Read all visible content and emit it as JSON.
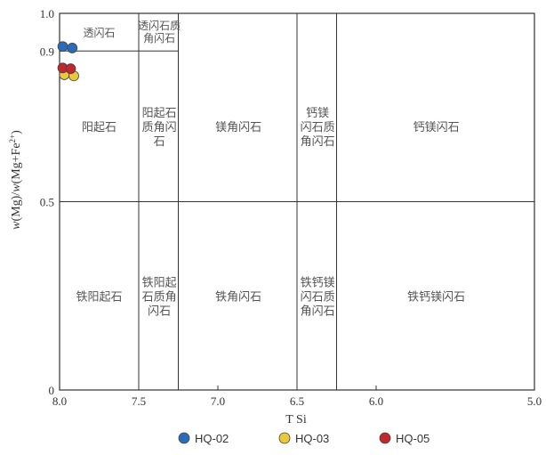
{
  "chart_data": {
    "type": "scatter",
    "xlabel": "T Si",
    "ylabel": "w(Mg)/w(Mg+Fe2+)",
    "xlim": [
      8.0,
      5.0
    ],
    "ylim": [
      0,
      1.0
    ],
    "x_reversed": true,
    "x_ticks": [
      "8.0",
      "7.5",
      "7.0",
      "6.5",
      "6.0",
      "5.0"
    ],
    "x_tick_values": [
      8.0,
      7.5,
      7.0,
      6.5,
      6.0,
      5.0
    ],
    "y_ticks": [
      "0",
      "0.5",
      "0.9",
      "1.0"
    ],
    "y_tick_values": [
      0,
      0.5,
      0.9,
      1.0
    ],
    "fields": [
      {
        "label": [
          "透闪石"
        ],
        "x": 7.75,
        "y": 0.95
      },
      {
        "label": [
          "透闪石质",
          "角闪石"
        ],
        "x": 7.37,
        "y": 0.95
      },
      {
        "label": [
          "阳起石"
        ],
        "x": 7.75,
        "y": 0.7
      },
      {
        "label": [
          "阳起石",
          "质角闪",
          "石"
        ],
        "x": 7.37,
        "y": 0.7
      },
      {
        "label": [
          "镁角闪石"
        ],
        "x": 6.87,
        "y": 0.7
      },
      {
        "label": [
          "钙镁",
          "闪石质",
          "角闪石"
        ],
        "x": 6.37,
        "y": 0.7
      },
      {
        "label": [
          "钙镁闪石"
        ],
        "x": 5.62,
        "y": 0.7
      },
      {
        "label": [
          "铁阳起石"
        ],
        "x": 7.75,
        "y": 0.25
      },
      {
        "label": [
          "铁阳起",
          "石质角",
          "闪石"
        ],
        "x": 7.37,
        "y": 0.25
      },
      {
        "label": [
          "铁角闪石"
        ],
        "x": 6.87,
        "y": 0.25
      },
      {
        "label": [
          "铁钙镁",
          "闪石质",
          "角闪石"
        ],
        "x": 6.37,
        "y": 0.25
      },
      {
        "label": [
          "铁钙镁闪石"
        ],
        "x": 5.62,
        "y": 0.25
      }
    ],
    "series": [
      {
        "name": "HQ-02",
        "color": "#2b6cb8",
        "points": [
          [
            7.98,
            0.912
          ],
          [
            7.92,
            0.908
          ]
        ]
      },
      {
        "name": "HQ-03",
        "color": "#e8c93a",
        "points": [
          [
            7.97,
            0.837
          ],
          [
            7.91,
            0.834
          ]
        ]
      },
      {
        "name": "HQ-05",
        "color": "#c0282d",
        "points": [
          [
            7.98,
            0.855
          ],
          [
            7.93,
            0.853
          ]
        ]
      }
    ]
  }
}
